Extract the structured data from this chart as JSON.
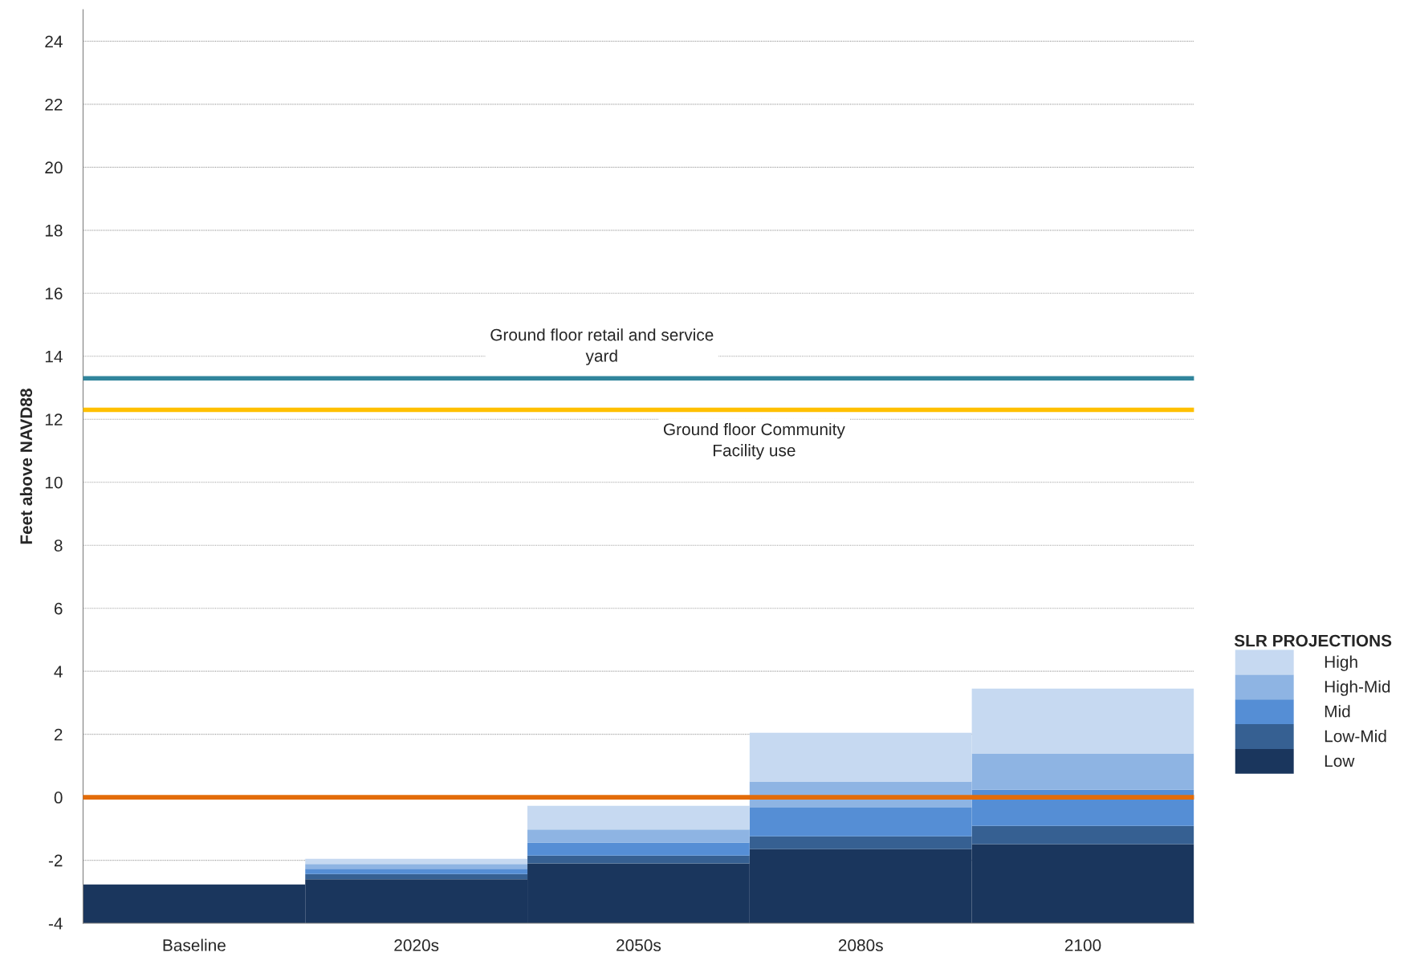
{
  "chart_data": {
    "type": "bar",
    "ylabel": "Feet above NAVD88",
    "legend_title": "SLR PROJECTIONS",
    "categories": [
      "Baseline",
      "2020s",
      "2050s",
      "2080s",
      "2100"
    ],
    "series": [
      {
        "name": "Low",
        "color": "#1a365d",
        "base": [
          -4,
          -4,
          -4,
          -4,
          -4
        ],
        "values": [
          1.23,
          1.4,
          1.9,
          2.35,
          2.51
        ]
      },
      {
        "name": "Low-Mid",
        "color": "#366092",
        "base": [
          null,
          -2.6,
          -2.1,
          -1.65,
          -1.49
        ],
        "values": [
          null,
          0.16,
          0.25,
          0.41,
          0.58
        ]
      },
      {
        "name": "Mid",
        "color": "#558ed5",
        "base": [
          null,
          -2.44,
          -1.85,
          -1.24,
          -0.91
        ],
        "values": [
          null,
          0.17,
          0.41,
          0.91,
          1.15
        ]
      },
      {
        "name": "High-Mid",
        "color": "#8eb4e3",
        "base": [
          null,
          -2.27,
          -1.44,
          -0.33,
          0.24
        ],
        "values": [
          null,
          0.15,
          0.42,
          0.83,
          1.15
        ]
      },
      {
        "name": "High",
        "color": "#c6d9f1",
        "base": [
          null,
          -2.12,
          -1.02,
          0.5,
          1.39
        ],
        "values": [
          null,
          0.17,
          0.75,
          1.55,
          2.06
        ]
      }
    ],
    "ylim": [
      -4,
      25
    ],
    "yticks": [
      -4,
      -2,
      0,
      2,
      4,
      6,
      8,
      10,
      12,
      14,
      16,
      18,
      20,
      22,
      24
    ],
    "ref_lines": [
      {
        "axis": "y",
        "value": 13.3,
        "label": "Ground floor retail and service\nyard",
        "color": "#31859c"
      },
      {
        "axis": "y",
        "value": 12.3,
        "label": "Ground floor Community\nFacility use",
        "color": "#ffc000"
      },
      {
        "axis": "y",
        "value": 0,
        "label": null,
        "color": "#e36c09"
      }
    ],
    "grid": "y",
    "legend": "right"
  }
}
